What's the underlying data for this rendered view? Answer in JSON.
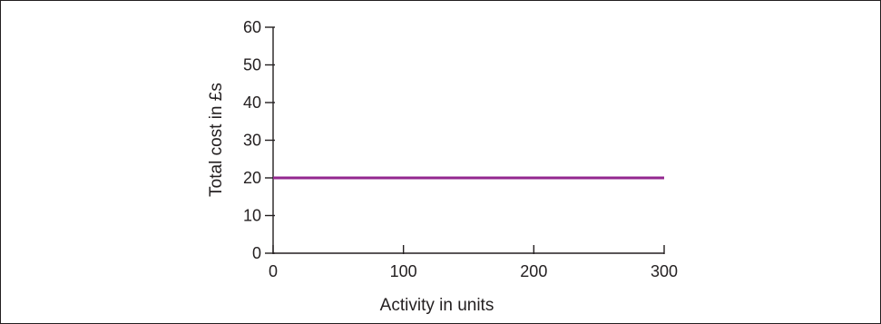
{
  "chart_data": {
    "type": "line",
    "xlabel": "Activity in units",
    "ylabel": "Total cost in £s",
    "xlim": [
      0,
      300
    ],
    "ylim": [
      0,
      60
    ],
    "x_ticks": [
      0,
      100,
      200,
      300
    ],
    "y_ticks": [
      0,
      10,
      20,
      30,
      40,
      50,
      60
    ],
    "x_tick_labels": [
      "0",
      "100",
      "200",
      "300"
    ],
    "y_tick_labels": [
      "0",
      "10",
      "20",
      "30",
      "40",
      "50",
      "60"
    ],
    "grid": false,
    "series": [
      {
        "x": [
          0,
          300
        ],
        "y": [
          20,
          20
        ],
        "color": "#93278f"
      }
    ],
    "axis_color": "#231f20"
  }
}
